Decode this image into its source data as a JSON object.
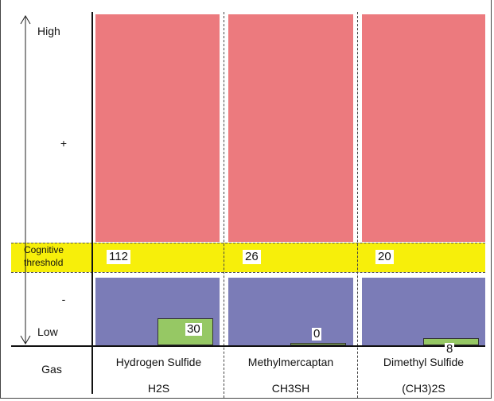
{
  "chart_data": {
    "type": "bar",
    "categories": [
      "Hydrogen Sulfide",
      "Methylmercaptan",
      "Dimethyl Sulfide"
    ],
    "formulas": [
      "H2S",
      "CH3SH",
      "(CH3)2S"
    ],
    "row_label": "Gas",
    "threshold_label": "Cognitive threshold",
    "threshold_values": [
      "112",
      "26",
      "20"
    ],
    "values": [
      30,
      0,
      8
    ],
    "value_labels": [
      "30",
      "0",
      "8"
    ],
    "y_levels": {
      "high": "High",
      "plus": "+",
      "minus": "-",
      "low": "Low"
    },
    "colors": {
      "high_zone": "#ec7a7e",
      "threshold_band": "#f7ef0a",
      "low_zone": "#7b7cb7",
      "bar": "#96c864"
    }
  }
}
